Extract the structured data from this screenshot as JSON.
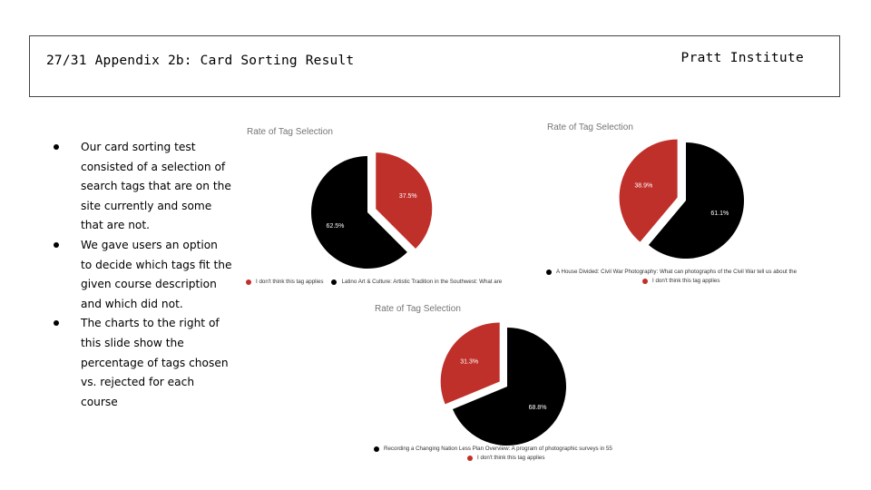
{
  "header": {
    "title": "27/31 Appendix 2b: Card Sorting Result",
    "org": "Pratt Institute"
  },
  "bullets": [
    "Our card sorting test consisted of a selection of search tags that are on the site currently and some that are not.",
    "We gave users an option to decide which tags fit the given course description and which did not.",
    "The charts to the right of this slide show the percentage of tags chosen vs. rejected for each course"
  ],
  "colors": {
    "rejected": "#c0302a",
    "chosen": "#000000",
    "label_text": "#ffffff",
    "title_text": "#757575"
  },
  "chart_data": [
    {
      "type": "pie",
      "title": "Rate of Tag Selection",
      "legend_position": "bottom",
      "slices": [
        {
          "label": "I don't think this tag applies",
          "value": 37.5,
          "display": "37.5%",
          "color": "#c0302a",
          "exploded": true
        },
        {
          "label": "Latino Art & Culture: Artistic Tradition in the Southwest:  What are",
          "value": 62.5,
          "display": "62.5%",
          "color": "#000000",
          "exploded": false
        }
      ]
    },
    {
      "type": "pie",
      "title": "Rate of Tag Selection",
      "legend_position": "bottom",
      "slices": [
        {
          "label": "A House Divided: Civil War Photography: What can photographs of the Civil War tell us about the",
          "value": 61.1,
          "display": "61.1%",
          "color": "#000000",
          "exploded": false
        },
        {
          "label": "I don't think this tag applies",
          "value": 38.9,
          "display": "38.9%",
          "color": "#c0302a",
          "exploded": true
        }
      ]
    },
    {
      "type": "pie",
      "title": "Rate of Tag Selection",
      "legend_position": "bottom",
      "slices": [
        {
          "label": "Recording a Changing Nation Less Plan Overview: A program of photographic surveys in 55",
          "value": 68.8,
          "display": "68.8%",
          "color": "#000000",
          "exploded": false
        },
        {
          "label": "I don't think this tag applies",
          "value": 31.3,
          "display": "31.3%",
          "color": "#c0302a",
          "exploded": true
        }
      ]
    }
  ]
}
